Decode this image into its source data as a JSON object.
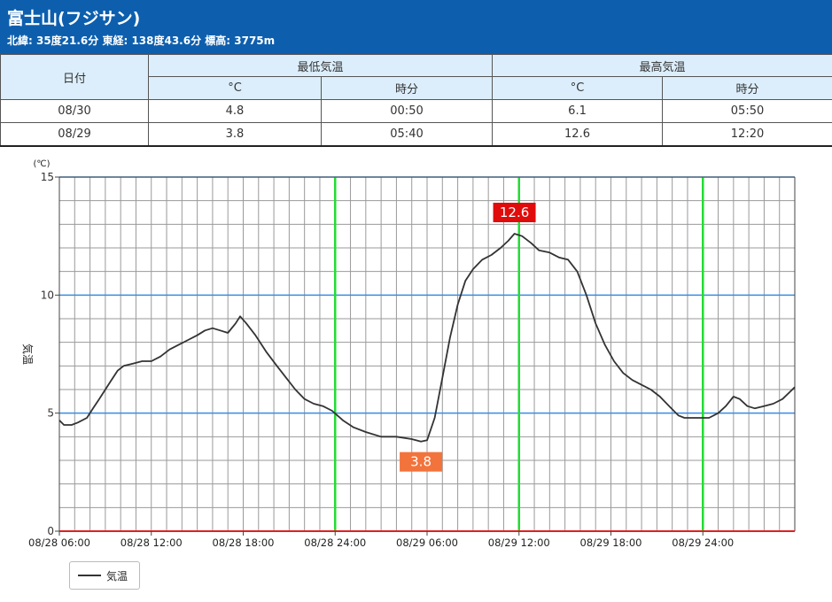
{
  "station": {
    "title": "富士山(フジサン)",
    "info": "北緯: 35度21.6分 東経: 138度43.6分 標高: 3775m"
  },
  "table": {
    "date_header": "日付",
    "min_header": "最低気温",
    "max_header": "最高気温",
    "unit_label": "°C",
    "time_label": "時分",
    "rows": [
      {
        "date": "08/30",
        "min_temp": "4.8",
        "min_time": "00:50",
        "max_temp": "6.1",
        "max_time": "05:50"
      },
      {
        "date": "08/29",
        "min_temp": "3.8",
        "min_time": "05:40",
        "max_temp": "12.6",
        "max_time": "12:20"
      }
    ]
  },
  "colors": {
    "header_bg": "#0d5fae",
    "line": "#333333",
    "major_grid": "#3a8ee6",
    "day_marker": "#22dd33",
    "zero_line": "#dd2222",
    "max_label_bg": "#e00b0b",
    "min_label_bg": "#f2733c"
  },
  "chart_data": {
    "type": "line",
    "unit_label": "(℃)",
    "ylabel": "気温",
    "ylim": [
      0,
      15
    ],
    "yticks": [
      0,
      5,
      10,
      15
    ],
    "x_range_hours": [
      0,
      48
    ],
    "x_ticks": [
      {
        "h": 0,
        "label": "08/28 06:00"
      },
      {
        "h": 6,
        "label": "08/28 12:00"
      },
      {
        "h": 12,
        "label": "08/28 18:00"
      },
      {
        "h": 18,
        "label": "08/28 24:00"
      },
      {
        "h": 24,
        "label": "08/29 06:00"
      },
      {
        "h": 30,
        "label": "08/29 12:00"
      },
      {
        "h": 36,
        "label": "08/29 18:00"
      },
      {
        "h": 42,
        "label": "08/29 24:00"
      }
    ],
    "day_markers_h": [
      18,
      30,
      42
    ],
    "series": [
      {
        "name": "気温",
        "points": [
          [
            0,
            4.7
          ],
          [
            0.3,
            4.5
          ],
          [
            0.8,
            4.5
          ],
          [
            1.2,
            4.6
          ],
          [
            1.8,
            4.8
          ],
          [
            2.2,
            5.2
          ],
          [
            2.6,
            5.6
          ],
          [
            3.0,
            6.0
          ],
          [
            3.4,
            6.4
          ],
          [
            3.8,
            6.8
          ],
          [
            4.2,
            7.0
          ],
          [
            4.8,
            7.1
          ],
          [
            5.4,
            7.2
          ],
          [
            6.0,
            7.2
          ],
          [
            6.6,
            7.4
          ],
          [
            7.2,
            7.7
          ],
          [
            7.8,
            7.9
          ],
          [
            8.4,
            8.1
          ],
          [
            9.0,
            8.3
          ],
          [
            9.5,
            8.5
          ],
          [
            10.0,
            8.6
          ],
          [
            10.5,
            8.5
          ],
          [
            11.0,
            8.4
          ],
          [
            11.5,
            8.8
          ],
          [
            11.8,
            9.1
          ],
          [
            12.2,
            8.8
          ],
          [
            12.8,
            8.3
          ],
          [
            13.5,
            7.6
          ],
          [
            14.2,
            7.0
          ],
          [
            14.8,
            6.5
          ],
          [
            15.4,
            6.0
          ],
          [
            16.0,
            5.6
          ],
          [
            16.6,
            5.4
          ],
          [
            17.2,
            5.3
          ],
          [
            17.8,
            5.1
          ],
          [
            18.5,
            4.7
          ],
          [
            19.2,
            4.4
          ],
          [
            20.0,
            4.2
          ],
          [
            21.0,
            4.0
          ],
          [
            22.0,
            4.0
          ],
          [
            23.0,
            3.9
          ],
          [
            23.6,
            3.8
          ],
          [
            24.0,
            3.85
          ],
          [
            24.5,
            4.8
          ],
          [
            25.0,
            6.5
          ],
          [
            25.5,
            8.2
          ],
          [
            26.0,
            9.6
          ],
          [
            26.5,
            10.6
          ],
          [
            27.0,
            11.1
          ],
          [
            27.6,
            11.5
          ],
          [
            28.2,
            11.7
          ],
          [
            28.8,
            12.0
          ],
          [
            29.3,
            12.3
          ],
          [
            29.7,
            12.6
          ],
          [
            30.2,
            12.5
          ],
          [
            30.8,
            12.2
          ],
          [
            31.3,
            11.9
          ],
          [
            32.0,
            11.8
          ],
          [
            32.6,
            11.6
          ],
          [
            33.2,
            11.5
          ],
          [
            33.8,
            11.0
          ],
          [
            34.4,
            10.0
          ],
          [
            35.0,
            8.8
          ],
          [
            35.6,
            7.9
          ],
          [
            36.2,
            7.2
          ],
          [
            36.8,
            6.7
          ],
          [
            37.4,
            6.4
          ],
          [
            38.0,
            6.2
          ],
          [
            38.6,
            6.0
          ],
          [
            39.2,
            5.7
          ],
          [
            39.8,
            5.3
          ],
          [
            40.4,
            4.9
          ],
          [
            40.8,
            4.8
          ],
          [
            41.6,
            4.8
          ],
          [
            42.4,
            4.8
          ],
          [
            43.0,
            5.0
          ],
          [
            43.5,
            5.3
          ],
          [
            44.0,
            5.7
          ],
          [
            44.4,
            5.6
          ],
          [
            44.9,
            5.3
          ],
          [
            45.4,
            5.2
          ],
          [
            46.0,
            5.3
          ],
          [
            46.6,
            5.4
          ],
          [
            47.2,
            5.6
          ],
          [
            48.0,
            6.1
          ]
        ]
      }
    ],
    "annotations": [
      {
        "text": "12.6",
        "h": 29.7,
        "value": 12.6,
        "kind": "max"
      },
      {
        "text": "3.8",
        "h": 23.6,
        "value": 3.8,
        "kind": "min"
      }
    ]
  },
  "legend": {
    "label": "気温"
  }
}
